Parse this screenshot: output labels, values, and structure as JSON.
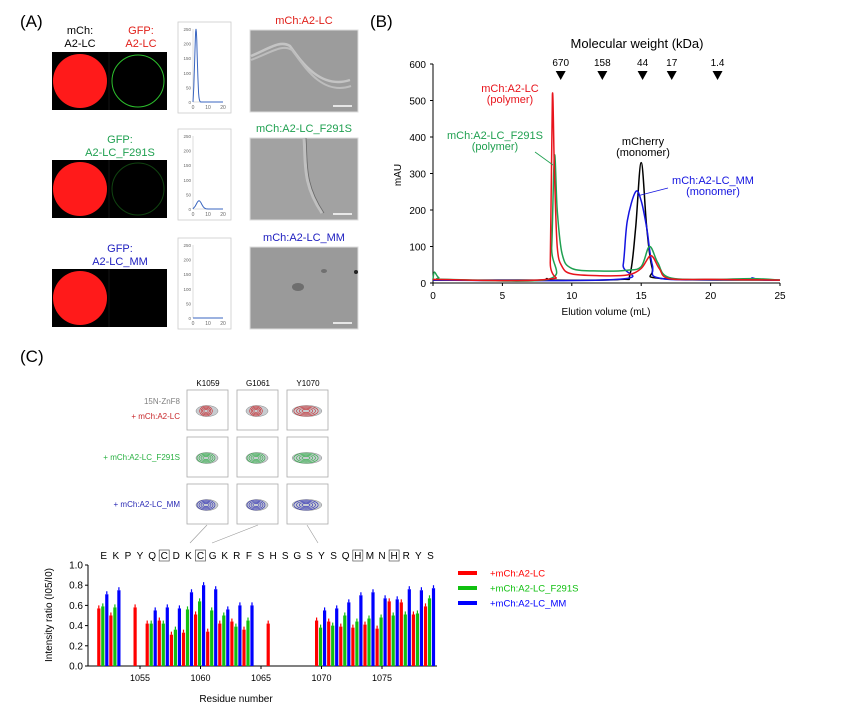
{
  "panel_labels": {
    "a": "(A)",
    "b": "(B)",
    "c": "(C)"
  },
  "panel_a": {
    "col_header_mch": [
      "mCh:",
      "A2-LC"
    ],
    "rows": [
      {
        "gfp_label": [
          "GFP:",
          "A2-LC"
        ],
        "color": "#e0201a",
        "gfp_ring": 1.0,
        "tem_title": "mCh:A2-LC",
        "hist_peak": 250,
        "hist_peak_x": 2
      },
      {
        "gfp_label": [
          "GFP:",
          "A2-LC_F291S"
        ],
        "color": "#1fa050",
        "gfp_ring": 0.35,
        "tem_title": "mCh:A2-LC_F291S",
        "hist_peak": 28,
        "hist_peak_x": 4
      },
      {
        "gfp_label": [
          "GFP:",
          "A2-LC_MM"
        ],
        "color": "#2020c0",
        "gfp_ring": 0.0,
        "tem_title": "mCh:A2-LC_MM",
        "hist_peak": 0,
        "hist_peak_x": 4
      }
    ],
    "hist_yticks": [
      "0",
      "50",
      "100",
      "150",
      "200",
      "250"
    ],
    "hist_xticks": [
      "0",
      "10",
      "20"
    ]
  },
  "chart_data": [
    {
      "type": "line",
      "title": "Molecular weight (kDa)",
      "xlabel": "Elution volume (mL)",
      "ylabel": "mAU",
      "xlim": [
        0,
        25
      ],
      "ylim": [
        0,
        600
      ],
      "xticks": [
        0,
        5,
        10,
        15,
        20,
        25
      ],
      "yticks": [
        0,
        100,
        200,
        300,
        400,
        500,
        600
      ],
      "mw_markers": [
        {
          "label": "670",
          "x": 9.2
        },
        {
          "label": "158",
          "x": 12.2
        },
        {
          "label": "44",
          "x": 15.1
        },
        {
          "label": "17",
          "x": 17.2
        },
        {
          "label": "1.4",
          "x": 20.5
        }
      ],
      "series": [
        {
          "name": "mCh:A2-LC",
          "color": "#e8141c",
          "annotation": [
            "mCh:A2-LC",
            "(polymer)"
          ],
          "points": [
            [
              0,
              10
            ],
            [
              8.2,
              10
            ],
            [
              8.45,
              60
            ],
            [
              8.6,
              515
            ],
            [
              8.75,
              300
            ],
            [
              8.95,
              100
            ],
            [
              9.3,
              45
            ],
            [
              10,
              25
            ],
            [
              12,
              20
            ],
            [
              14,
              22
            ],
            [
              15,
              40
            ],
            [
              15.7,
              75
            ],
            [
              16.3,
              40
            ],
            [
              17,
              12
            ],
            [
              20,
              10
            ],
            [
              25,
              8
            ]
          ]
        },
        {
          "name": "mCh:A2-LC_F291S",
          "color": "#1fa050",
          "annotation": [
            "mCh:A2-LC_F291S",
            "(polymer)"
          ],
          "points": [
            [
              0,
              10
            ],
            [
              0.1,
              30
            ],
            [
              0.4,
              15
            ],
            [
              1,
              10
            ],
            [
              8.3,
              10
            ],
            [
              8.55,
              100
            ],
            [
              8.75,
              350
            ],
            [
              8.95,
              200
            ],
            [
              9.3,
              80
            ],
            [
              10,
              40
            ],
            [
              12,
              33
            ],
            [
              14,
              35
            ],
            [
              15,
              45
            ],
            [
              15.6,
              100
            ],
            [
              16.2,
              55
            ],
            [
              17,
              15
            ],
            [
              20,
              10
            ],
            [
              23,
              12
            ],
            [
              25,
              8
            ]
          ]
        },
        {
          "name": "mCherry",
          "color": "#000000",
          "annotation": [
            "mCherry",
            "(monomer)"
          ],
          "points": [
            [
              0,
              8
            ],
            [
              7.5,
              8
            ],
            [
              8.2,
              12
            ],
            [
              8.6,
              8
            ],
            [
              13.5,
              10
            ],
            [
              14.2,
              25
            ],
            [
              14.6,
              150
            ],
            [
              15,
              330
            ],
            [
              15.4,
              150
            ],
            [
              15.8,
              40
            ],
            [
              16.5,
              12
            ],
            [
              25,
              8
            ]
          ]
        },
        {
          "name": "mCh:A2-LC_MM",
          "color": "#1414e0",
          "annotation": [
            "mCh:A2-LC_MM",
            "(monomer)"
          ],
          "points": [
            [
              0,
              8
            ],
            [
              13.3,
              10
            ],
            [
              13.7,
              50
            ],
            [
              14.0,
              170
            ],
            [
              14.6,
              250
            ],
            [
              15.0,
              225
            ],
            [
              15.4,
              150
            ],
            [
              15.8,
              50
            ],
            [
              16.5,
              12
            ],
            [
              22.5,
              10
            ],
            [
              23,
              14
            ],
            [
              23.5,
              9
            ],
            [
              25,
              8
            ]
          ]
        }
      ]
    },
    {
      "type": "bar",
      "xlabel": "Residue number",
      "ylabel": "Intensity ratio (I05/I0)",
      "ylim": [
        0,
        1.0
      ],
      "yticks": [
        "0.0",
        "0.2",
        "0.4",
        "0.6",
        "0.8",
        "1.0"
      ],
      "xticks": [
        1055,
        1060,
        1065,
        1070,
        1075
      ],
      "residue_start": 1052,
      "sequence": [
        "E",
        "K",
        "P",
        "Y",
        "Q",
        "C",
        "D",
        "K",
        "C",
        "G",
        "K",
        "R",
        "F",
        "S",
        "H",
        "S",
        "G",
        "S",
        "Y",
        "S",
        "Q",
        "H",
        "M",
        "N",
        "H",
        "R",
        "Y",
        "S"
      ],
      "boxed_residues": [
        5,
        8,
        21,
        24
      ],
      "series": [
        {
          "name": "+mCh:A2-LC",
          "color": "#ff0000",
          "values": [
            0.57,
            0.5,
            null,
            0.58,
            0.42,
            0.45,
            0.31,
            0.33,
            0.51,
            0.34,
            0.42,
            0.44,
            0.36,
            null,
            0.42,
            null,
            null,
            null,
            0.45,
            0.44,
            0.39,
            0.38,
            0.41,
            0.37,
            0.64,
            0.63,
            0.51,
            0.59
          ]
        },
        {
          "name": "+mCh:A2-LC_F291S",
          "color": "#10c010",
          "values": [
            0.59,
            0.58,
            null,
            null,
            0.42,
            0.42,
            0.36,
            0.56,
            0.64,
            0.55,
            0.5,
            0.39,
            0.45,
            null,
            null,
            null,
            null,
            null,
            0.38,
            0.4,
            0.5,
            0.44,
            0.47,
            0.48,
            0.5,
            0.51,
            0.52,
            0.67
          ]
        },
        {
          "name": "+mCh:A2-LC_MM",
          "color": "#0000ff",
          "values": [
            0.71,
            0.75,
            null,
            null,
            0.55,
            0.58,
            0.57,
            0.73,
            0.8,
            0.76,
            0.56,
            0.6,
            0.6,
            null,
            null,
            null,
            null,
            null,
            0.55,
            0.57,
            0.63,
            0.7,
            0.73,
            0.67,
            0.66,
            0.76,
            0.75,
            0.77
          ]
        }
      ]
    }
  ],
  "nmr": {
    "columns": [
      "K1059",
      "G1061",
      "Y1070"
    ],
    "reference_label": "15N-ZnF8",
    "reference_sup": "15",
    "reference_rest": "N-ZnF8",
    "rows": [
      {
        "label": "+ mCh:A2-LC",
        "color": "#c8282c"
      },
      {
        "label": "+ mCh:A2-LC_F291S",
        "color": "#28b040"
      },
      {
        "label": "+ mCh:A2-LC_MM",
        "color": "#2828b4"
      }
    ]
  }
}
